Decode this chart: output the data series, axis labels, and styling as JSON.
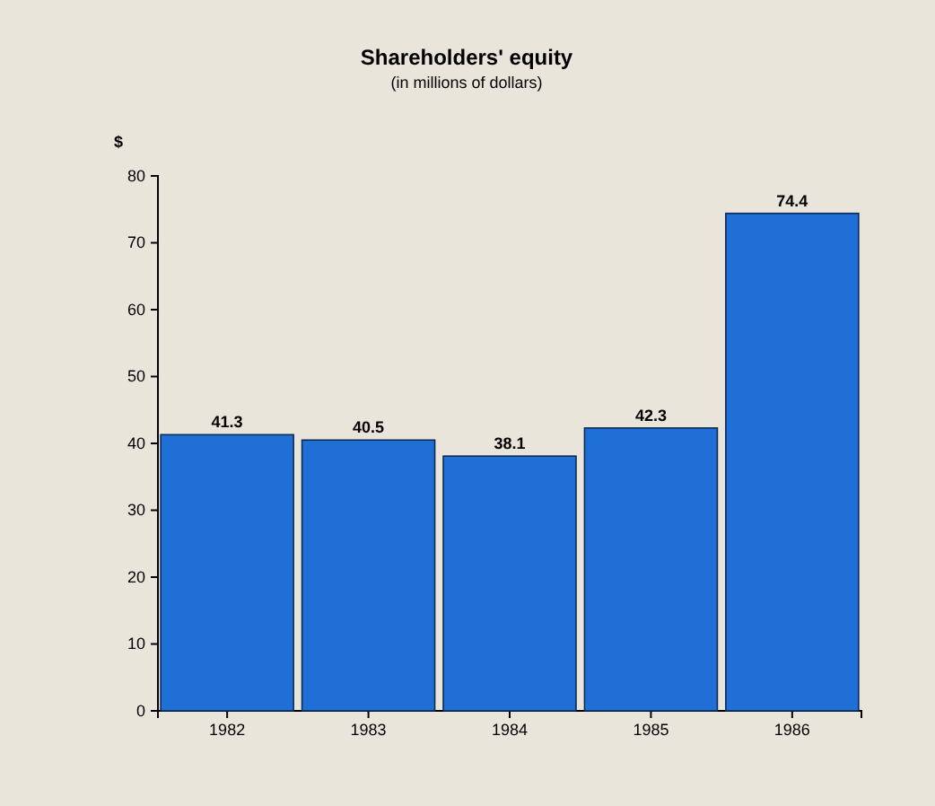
{
  "chart_data": {
    "type": "bar",
    "title": "Shareholders' equity",
    "subtitle": "(in millions of dollars)",
    "ylabel": "$",
    "categories": [
      "1982",
      "1983",
      "1984",
      "1985",
      "1986"
    ],
    "values": [
      41.3,
      40.5,
      38.1,
      42.3,
      74.4
    ],
    "color": "#1f6fd6",
    "ylim": [
      0,
      80
    ],
    "yticks": [
      0,
      10,
      20,
      30,
      40,
      50,
      60,
      70,
      80
    ],
    "data_labels": true,
    "grid": false
  }
}
